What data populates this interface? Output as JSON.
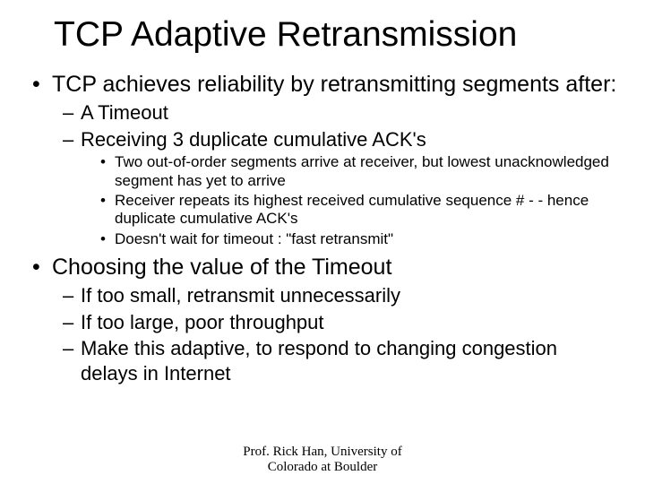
{
  "title": "TCP Adaptive Retransmission",
  "bullets": {
    "b1": "TCP achieves reliability by retransmitting segments after:",
    "b1_1": "A Timeout",
    "b1_2": "Receiving 3 duplicate cumulative ACK's",
    "b1_2_1": "Two out-of-order segments arrive at receiver, but lowest unacknowledged segment has yet to arrive",
    "b1_2_2": "Receiver repeats its highest received cumulative sequence # - - hence duplicate cumulative ACK's",
    "b1_2_3": "Doesn't wait for timeout : \"fast retransmit\"",
    "b2": "Choosing the value of the Timeout",
    "b2_1": "If too small, retransmit unnecessarily",
    "b2_2": "If too large, poor throughput",
    "b2_3": "Make this adaptive, to respond to changing congestion delays in Internet"
  },
  "footer": {
    "line1": "Prof. Rick Han, University of",
    "line2": "Colorado at Boulder"
  },
  "style": {
    "title_fontsize": 39,
    "lvl1_fontsize": 25,
    "lvl2_fontsize": 22,
    "lvl3_fontsize": 17,
    "footer_fontsize": 15,
    "font_family_body": "Comic Sans MS",
    "font_family_footer": "Times New Roman",
    "text_color": "#000000",
    "background_color": "#ffffff"
  }
}
